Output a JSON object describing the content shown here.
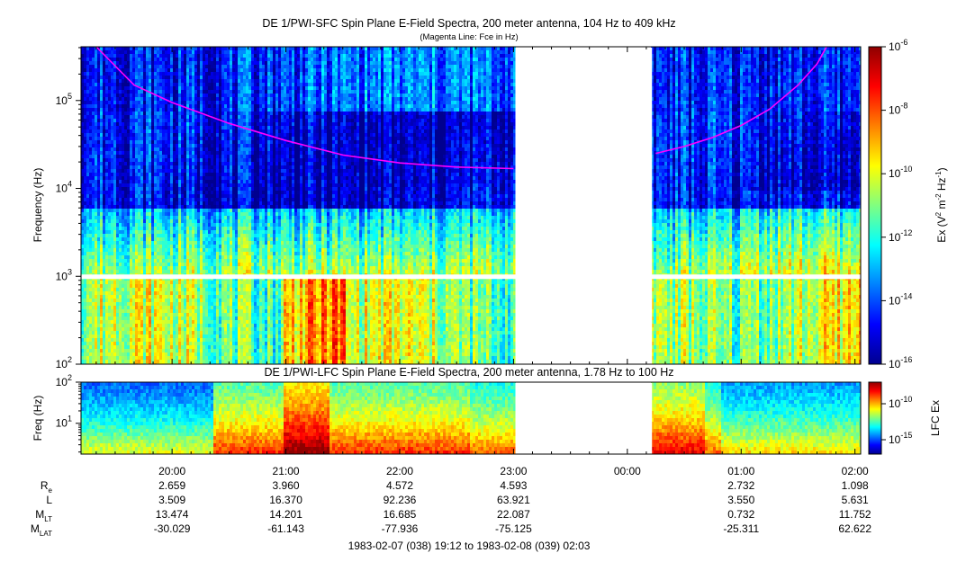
{
  "title": "DE 1/PWI-SFC  Spin Plane E-Field Spectra, 200 meter antenna, 104 Hz to 409 kHz",
  "subtitle": "(Magenta Line: Fce in Hz)",
  "lfc_title": "DE 1/PWI-LFC  Spin Plane E-Field Spectra, 200 meter antenna, 1.78 Hz to 100 Hz",
  "footer": "1983-02-07 (038) 19:12 to 1983-02-08 (039) 02:03",
  "colors": {
    "colormap": [
      "#00008f",
      "#0000ff",
      "#0080ff",
      "#00ffff",
      "#80ff80",
      "#ffff00",
      "#ff8000",
      "#ff0000",
      "#8f0000"
    ],
    "fce_line": "#ff00ff",
    "data_gap": "#ffffff"
  },
  "chart_data": [
    {
      "type": "heatmap",
      "name": "SFC",
      "ylabel_main": "Frequency",
      "ylabel_unit": "(Hz)",
      "yscale": "log",
      "ylim": [
        100,
        409000
      ],
      "y_ticks": [
        {
          "value": 100,
          "base": "10",
          "exp": "2"
        },
        {
          "value": 1000,
          "base": "10",
          "exp": "3"
        },
        {
          "value": 10000,
          "base": "10",
          "exp": "4"
        },
        {
          "value": 100000,
          "base": "10",
          "exp": "5"
        }
      ],
      "xlim": [
        "19:12",
        "02:03"
      ],
      "data_gaps": [
        [
          "23:01",
          "00:13"
        ]
      ],
      "colorbar": {
        "label_prefix": "Ex (V",
        "label_sup1": "2",
        "label_mid": " m",
        "label_sup2": "-2",
        "label_mid2": " Hz",
        "label_sup3": "-1",
        "label_suffix": ")",
        "scale": "log",
        "range": [
          1e-16,
          1e-06
        ],
        "ticks": [
          {
            "value": 1e-06,
            "base": "10",
            "exp": "-6"
          },
          {
            "value": 1e-08,
            "base": "10",
            "exp": "-8"
          },
          {
            "value": 1e-10,
            "base": "10",
            "exp": "-10"
          },
          {
            "value": 1e-12,
            "base": "10",
            "exp": "-12"
          },
          {
            "value": 1e-14,
            "base": "10",
            "exp": "-14"
          },
          {
            "value": 1e-16,
            "base": "10",
            "exp": "-16"
          }
        ]
      },
      "fce_segments": [
        [
          [
            "19:20",
            409000
          ],
          [
            "19:40",
            150000
          ],
          [
            "20:00",
            95000
          ],
          [
            "20:30",
            55000
          ],
          [
            "21:00",
            35000
          ],
          [
            "21:30",
            24000
          ],
          [
            "22:00",
            19500
          ],
          [
            "22:30",
            17500
          ],
          [
            "23:00",
            16800
          ]
        ],
        [
          [
            "00:15",
            25000
          ],
          [
            "00:30",
            30000
          ],
          [
            "00:45",
            38000
          ],
          [
            "01:00",
            52000
          ],
          [
            "01:15",
            80000
          ],
          [
            "01:30",
            150000
          ],
          [
            "01:40",
            260000
          ],
          [
            "01:45",
            409000
          ]
        ]
      ]
    },
    {
      "type": "heatmap",
      "name": "LFC",
      "ylabel_main": "Freq",
      "ylabel_unit": "(Hz)",
      "yscale": "log",
      "ylim": [
        1.78,
        100
      ],
      "y_ticks": [
        {
          "value": 10,
          "base": "10",
          "exp": "1"
        },
        {
          "value": 100,
          "base": "10",
          "exp": "2"
        }
      ],
      "xlim": [
        "19:12",
        "02:03"
      ],
      "data_gaps": [
        [
          "23:01",
          "00:13"
        ]
      ],
      "colorbar": {
        "label": "LFC Ex",
        "scale": "log",
        "range": [
          1e-17,
          1e-07
        ],
        "ticks": [
          {
            "value": 1e-10,
            "base": "10",
            "exp": "-10"
          },
          {
            "value": 1e-15,
            "base": "10",
            "exp": "-15"
          }
        ]
      }
    }
  ],
  "time_axis": {
    "start": "19:12",
    "end": "02:03",
    "tick_labels": [
      "20:00",
      "21:00",
      "22:00",
      "23:00",
      "00:00",
      "01:00",
      "02:00"
    ]
  },
  "ephemeris": {
    "rows": [
      {
        "label": "R",
        "sub": "e",
        "values": [
          "2.659",
          "3.960",
          "4.572",
          "4.593",
          "",
          "2.732",
          "1.098"
        ]
      },
      {
        "label": "L",
        "sub": "",
        "values": [
          "3.509",
          "16.370",
          "92.236",
          "63.921",
          "",
          "3.550",
          "5.631"
        ]
      },
      {
        "label": "M",
        "sub": "LT",
        "values": [
          "13.474",
          "14.201",
          "16.685",
          "22.087",
          "",
          "0.732",
          "11.752"
        ]
      },
      {
        "label": "M",
        "sub": "LAT",
        "values": [
          "-30.029",
          "-61.143",
          "-77.936",
          "-75.125",
          "",
          "-25.311",
          "62.622"
        ]
      }
    ]
  }
}
